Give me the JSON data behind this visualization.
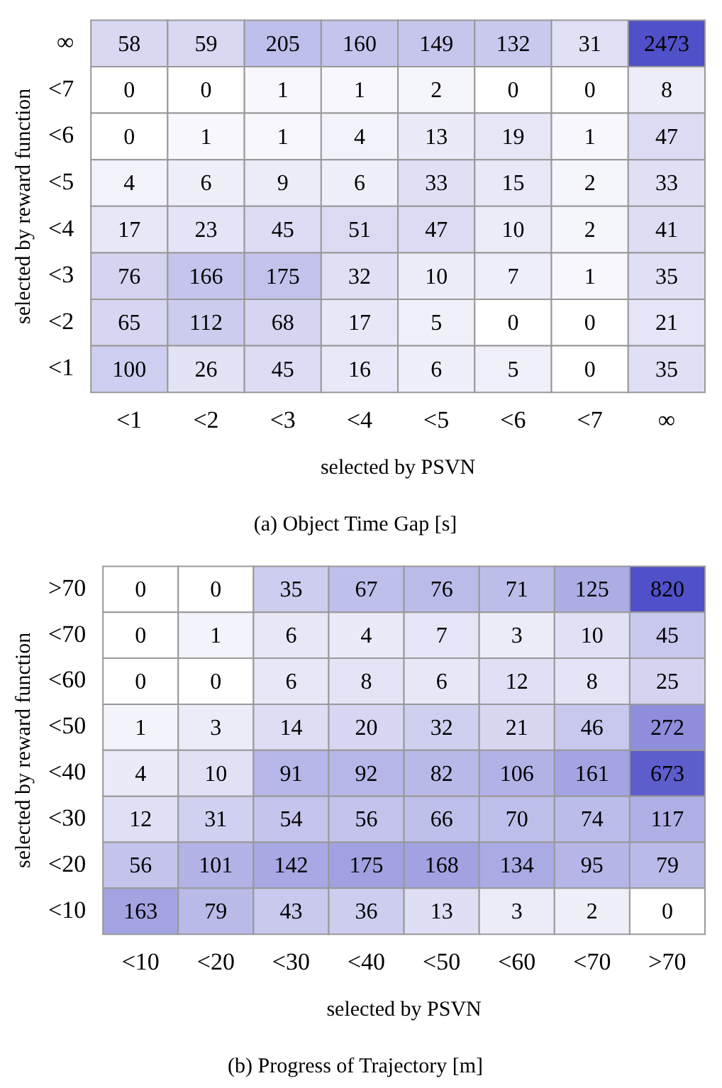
{
  "chart_data": [
    {
      "type": "heatmap",
      "title": "(a) Object Time Gap [s]",
      "xlabel": "selected by PSVN",
      "ylabel": "selected by reward function",
      "color": "#5050c8",
      "categories": [
        "<1",
        "<2",
        "<3",
        "<4",
        "<5",
        "<6",
        "<7",
        "∞"
      ],
      "y_categories": [
        "∞",
        "<7",
        "<6",
        "<5",
        "<4",
        "<3",
        "<2",
        "<1"
      ],
      "cells": [
        [
          58,
          59,
          205,
          160,
          149,
          132,
          31,
          2473
        ],
        [
          0,
          0,
          1,
          1,
          2,
          0,
          0,
          8
        ],
        [
          0,
          1,
          1,
          4,
          13,
          19,
          1,
          47
        ],
        [
          4,
          6,
          9,
          6,
          33,
          15,
          2,
          33
        ],
        [
          17,
          23,
          45,
          51,
          47,
          10,
          2,
          41
        ],
        [
          76,
          166,
          175,
          32,
          10,
          7,
          1,
          35
        ],
        [
          65,
          112,
          68,
          17,
          5,
          0,
          0,
          21
        ],
        [
          100,
          26,
          45,
          16,
          6,
          5,
          0,
          35
        ]
      ],
      "data_labels": true
    },
    {
      "type": "heatmap",
      "title": "(b) Progress of Trajectory [m]",
      "xlabel": "selected by PSVN",
      "ylabel": "selected by reward function",
      "color": "#5050c8",
      "categories": [
        "<10",
        "<20",
        "<30",
        "<40",
        "<50",
        "<60",
        "<70",
        ">70"
      ],
      "y_categories": [
        ">70",
        "<70",
        "<60",
        "<50",
        "<40",
        "<30",
        "<20",
        "<10"
      ],
      "cells": [
        [
          0,
          0,
          35,
          67,
          76,
          71,
          125,
          820
        ],
        [
          0,
          1,
          6,
          4,
          7,
          3,
          10,
          45
        ],
        [
          0,
          0,
          6,
          8,
          6,
          12,
          8,
          25
        ],
        [
          1,
          3,
          14,
          20,
          32,
          21,
          46,
          272
        ],
        [
          4,
          10,
          91,
          92,
          82,
          106,
          161,
          673
        ],
        [
          12,
          31,
          54,
          56,
          66,
          70,
          74,
          117
        ],
        [
          56,
          101,
          142,
          175,
          168,
          134,
          95,
          79
        ],
        [
          163,
          79,
          43,
          36,
          13,
          3,
          2,
          0
        ]
      ],
      "data_labels": true
    }
  ]
}
